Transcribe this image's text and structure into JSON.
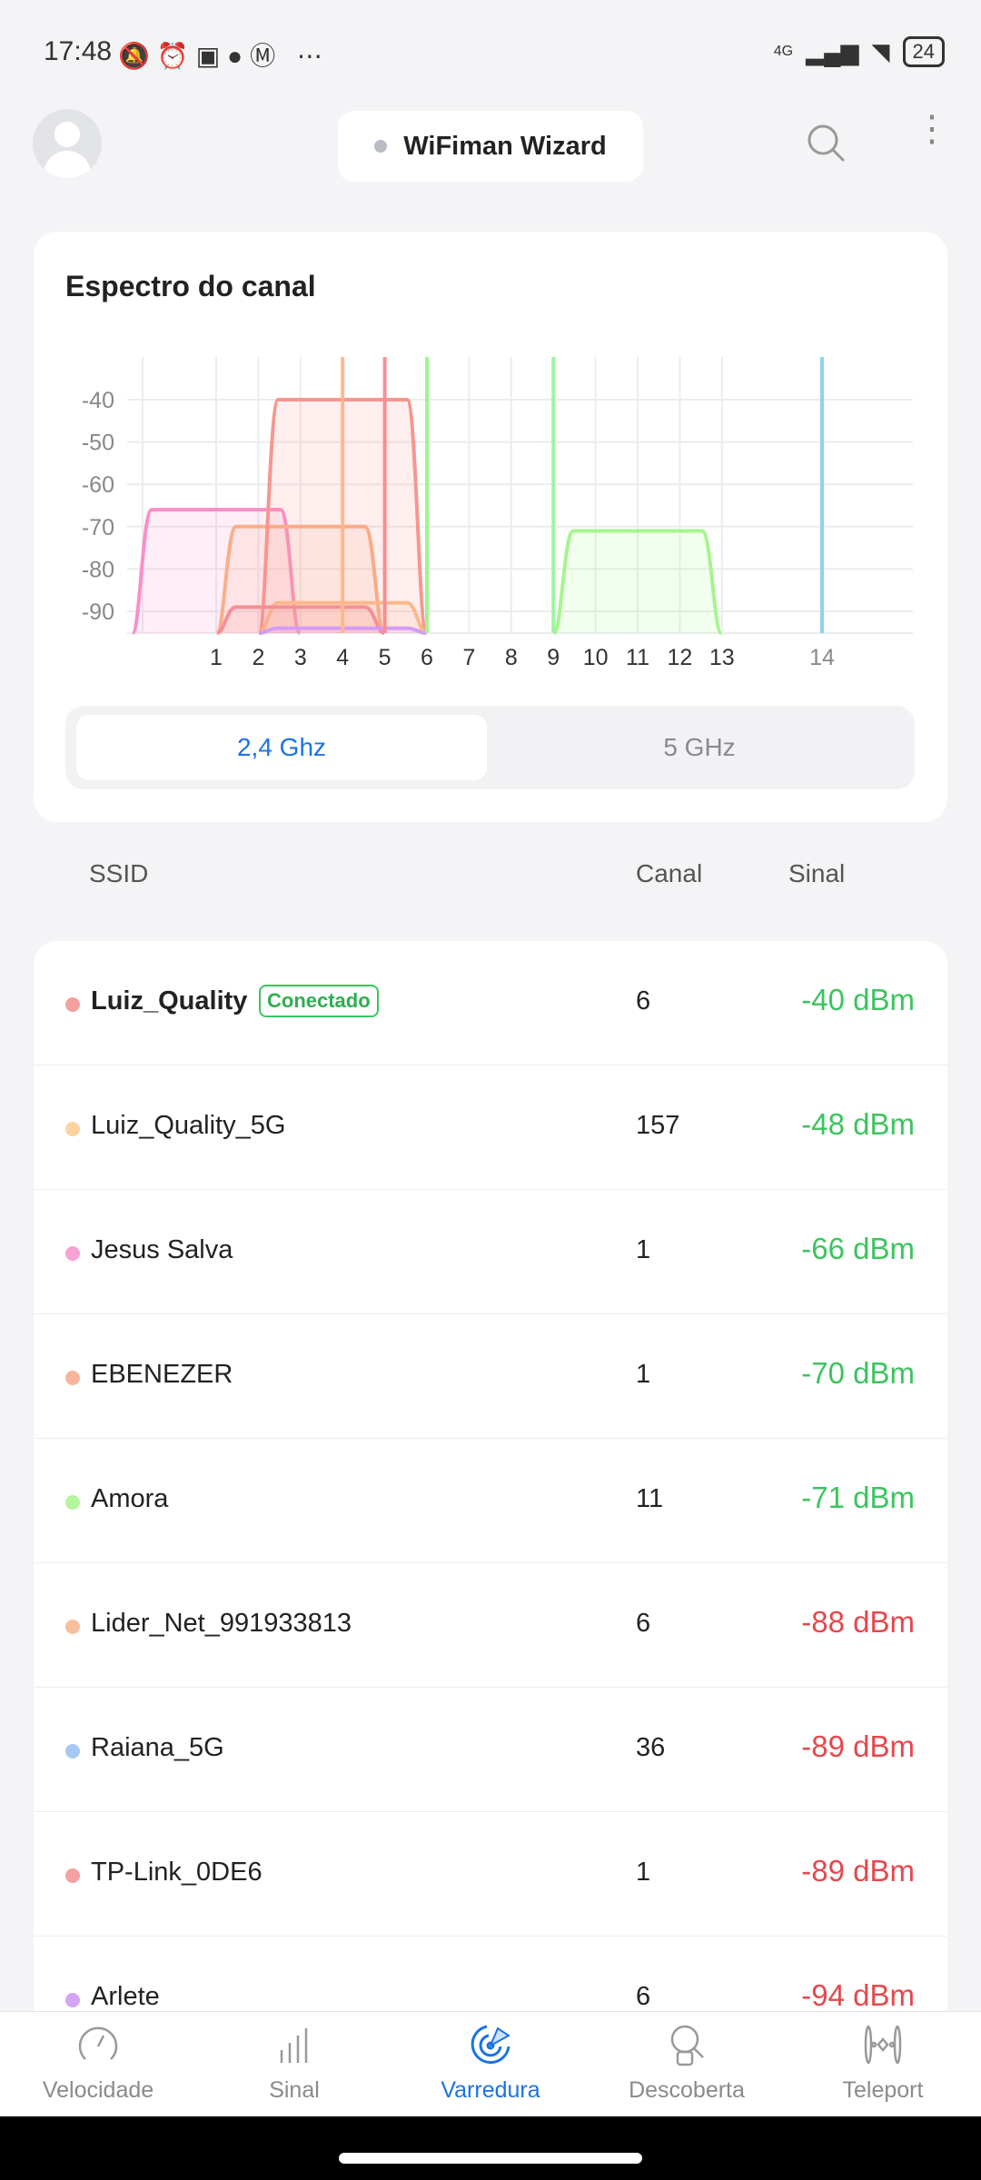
{
  "status_bar": {
    "time": "17:48",
    "icons": [
      "mute-icon",
      "alarm-icon",
      "chat-icon",
      "message-icon",
      "gmail-icon",
      "more-icon"
    ],
    "network": "4G",
    "battery": "24"
  },
  "header": {
    "app_title": "WiFiman Wizard"
  },
  "spectrum": {
    "title": "Espectro do canal",
    "tabs": [
      {
        "label": "2,4 Ghz",
        "selected": true
      },
      {
        "label": "5 GHz",
        "selected": false
      }
    ]
  },
  "chart_data": {
    "type": "area",
    "title": "",
    "xlabel": "",
    "ylabel": "",
    "x_ticks": [
      "1",
      "2",
      "3",
      "4",
      "5",
      "6",
      "7",
      "8",
      "9",
      "10",
      "11",
      "12",
      "13",
      "14"
    ],
    "y_ticks": [
      "-40",
      "-50",
      "-60",
      "-70",
      "-80",
      "-90"
    ],
    "ylim": [
      -95,
      -30
    ],
    "grid": true,
    "series": [
      {
        "center_channel": 1,
        "signal_dbm": -66,
        "color": "#f98fc8"
      },
      {
        "center_channel": 3,
        "signal_dbm": -70,
        "color": "#fcae88"
      },
      {
        "center_channel": 4,
        "signal_dbm": -40,
        "color": "#f7968f"
      },
      {
        "center_channel": 11,
        "signal_dbm": -71,
        "color": "#a6f58e"
      },
      {
        "center_channel": 4,
        "signal_dbm": -88,
        "color": "#fcb88a"
      },
      {
        "center_channel": 3,
        "signal_dbm": -89,
        "color": "#f58f95"
      },
      {
        "center_channel": 4,
        "signal_dbm": -94,
        "color": "#d49bf7"
      }
    ],
    "vertical_lines": [
      {
        "channel": 4,
        "color": "#ffb78f"
      },
      {
        "channel": 5,
        "color": "#f58f95"
      },
      {
        "channel": 6,
        "color": "#9ef58e"
      },
      {
        "channel": 9,
        "color": "#9ef5a0"
      },
      {
        "channel": 13.9,
        "color": "#8fd3f0"
      }
    ]
  },
  "columns": {
    "ssid": "SSID",
    "channel": "Canal",
    "signal": "Sinal"
  },
  "networks": [
    {
      "ssid": "Luiz_Quality",
      "badge": "Conectado",
      "channel": "6",
      "signal": "-40 dBm",
      "color": "#f4a09c",
      "sig_color": "#3cc45f"
    },
    {
      "ssid": "Luiz_Quality_5G",
      "channel": "157",
      "signal": "-48 dBm",
      "color": "#fcd3a0",
      "sig_color": "#3cc45f"
    },
    {
      "ssid": "Jesus Salva",
      "channel": "1",
      "signal": "-66 dBm",
      "color": "#f7a1d4",
      "sig_color": "#3cc45f"
    },
    {
      "ssid": "EBENEZER",
      "channel": "1",
      "signal": "-70 dBm",
      "color": "#f8b59c",
      "sig_color": "#3cc45f"
    },
    {
      "ssid": "Amora",
      "channel": "11",
      "signal": "-71 dBm",
      "color": "#b4f59e",
      "sig_color": "#3cc45f"
    },
    {
      "ssid": "Lider_Net_991933813",
      "channel": "6",
      "signal": "-88 dBm",
      "color": "#f8bf9c",
      "sig_color": "#e5484d"
    },
    {
      "ssid": "Raiana_5G",
      "channel": "36",
      "signal": "-89 dBm",
      "color": "#a7c8f5",
      "sig_color": "#e5484d"
    },
    {
      "ssid": "TP-Link_0DE6",
      "channel": "1",
      "signal": "-89 dBm",
      "color": "#f4a0a4",
      "sig_color": "#e5484d"
    },
    {
      "ssid": "Arlete",
      "channel": "6",
      "signal": "-94 dBm",
      "color": "#d4a4f5",
      "sig_color": "#e5484d"
    }
  ],
  "nav": [
    {
      "label": "Velocidade",
      "icon": "speedometer-icon"
    },
    {
      "label": "Sinal",
      "icon": "signal-bars-icon"
    },
    {
      "label": "Varredura",
      "icon": "radar-icon",
      "active": true
    },
    {
      "label": "Descoberta",
      "icon": "device-discovery-icon"
    },
    {
      "label": "Teleport",
      "icon": "teleport-icon"
    }
  ],
  "accent": "#1a73e8"
}
